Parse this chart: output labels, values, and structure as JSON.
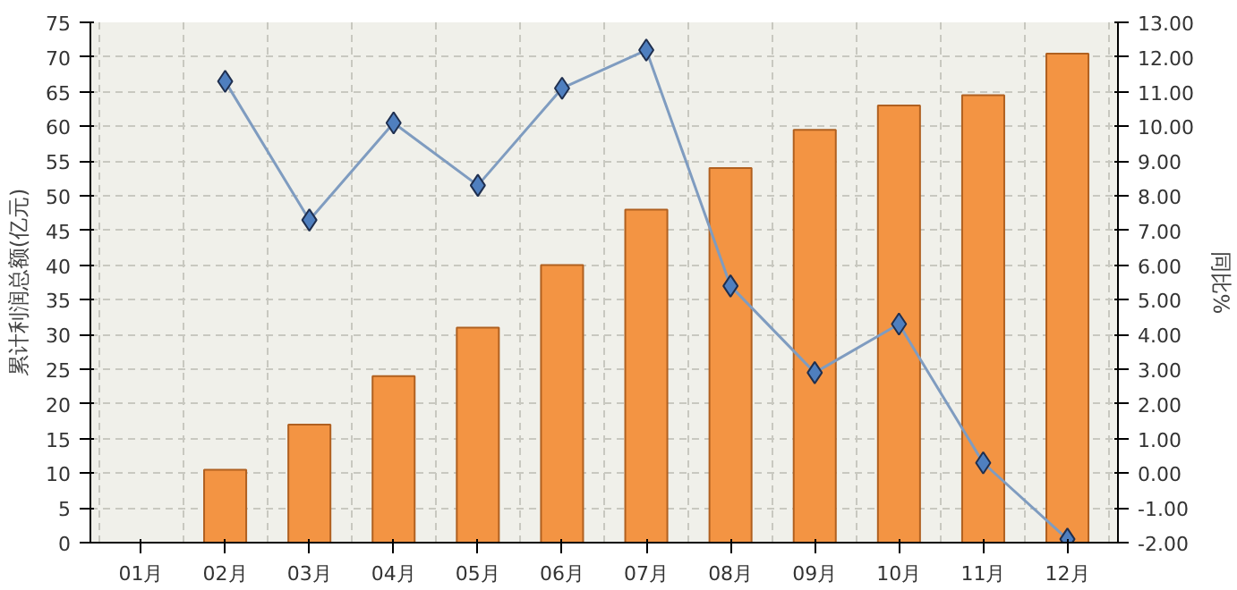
{
  "chart_data": {
    "type": "bar",
    "categories": [
      "01月",
      "02月",
      "03月",
      "04月",
      "05月",
      "06月",
      "07月",
      "08月",
      "09月",
      "10月",
      "11月",
      "12月"
    ],
    "ylabel": "累计利润总额(亿元)",
    "y2label": "同比%",
    "ylim": [
      0,
      75
    ],
    "yticks": [
      0,
      5,
      10,
      15,
      20,
      25,
      30,
      35,
      40,
      45,
      50,
      55,
      60,
      65,
      70,
      75
    ],
    "y2lim": [
      -2,
      13
    ],
    "y2ticks": [
      {
        "value": -2,
        "label": "-2.00"
      },
      {
        "value": -1,
        "label": "-1.00"
      },
      {
        "value": 0,
        "label": "0.00"
      },
      {
        "value": 1,
        "label": "1.00"
      },
      {
        "value": 2,
        "label": "2.00"
      },
      {
        "value": 3,
        "label": "3.00"
      },
      {
        "value": 4,
        "label": "4.00"
      },
      {
        "value": 5,
        "label": "5.00"
      },
      {
        "value": 6,
        "label": "6.00"
      },
      {
        "value": 7,
        "label": "7.00"
      },
      {
        "value": 8,
        "label": "8.00"
      },
      {
        "value": 9,
        "label": "9.00"
      },
      {
        "value": 10,
        "label": "10.00"
      },
      {
        "value": 11,
        "label": "11.00"
      },
      {
        "value": 12,
        "label": "12.00"
      },
      {
        "value": 13,
        "label": "13.00"
      }
    ],
    "grid": true,
    "series": [
      {
        "color": "#f39443",
        "values": [
          null,
          10.5,
          17,
          24,
          31,
          40,
          48,
          54,
          59.5,
          63,
          64.5,
          70.5
        ]
      },
      {
        "type": "line",
        "axis": "y2",
        "color": "#7f9cc0",
        "marker": "diamond",
        "line_style": "solid",
        "values": [
          null,
          11.3,
          7.3,
          10.1,
          8.3,
          11.1,
          12.2,
          5.4,
          2.9,
          4.3,
          0.3,
          -1.9
        ]
      }
    ]
  }
}
